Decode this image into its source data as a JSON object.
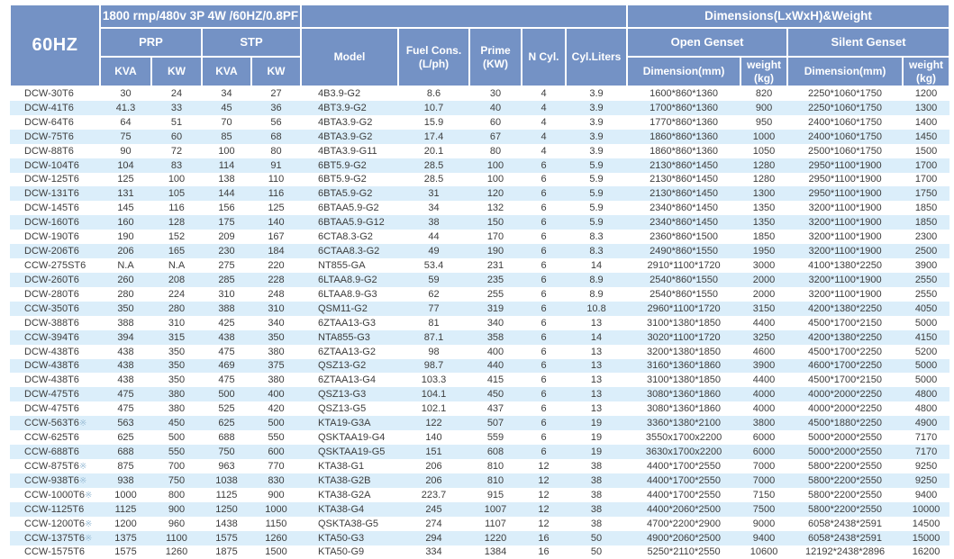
{
  "colors": {
    "header_bg": "#7492c5",
    "row_stripe": "#dbeefa",
    "body_text": "#3d3d3d",
    "header_text": "#ffffff",
    "special_mark": "#9fc0d8"
  },
  "header": {
    "freq": "60HZ",
    "spec_line": "1800 rmp/480v 3P 4W /60HZ/0.8PF",
    "prp": "PRP",
    "stp": "STP",
    "kva": "KVA",
    "kw": "KW",
    "model": "Model",
    "fuel": "Fuel Cons.\n(L/ph)",
    "prime": "Prime\n(KW)",
    "ncyl": "N Cyl.",
    "cyl_liters": "Cyl.Liters",
    "dims_group": "Dimensions(LxWxH)&Weight",
    "open_genset": "Open Genset",
    "silent_genset": "Silent Genset",
    "dimension_mm": "Dimension(mm)",
    "weight_kg": "weight\n(kg)"
  },
  "columns": [
    "genset",
    "prp_kva",
    "prp_kw",
    "stp_kva",
    "stp_kw",
    "model",
    "fuel",
    "prime",
    "ncyl",
    "cyl_liters",
    "open_dim",
    "open_weight",
    "silent_dim",
    "silent_weight"
  ],
  "rows": [
    [
      "DCW-30T6",
      "30",
      "24",
      "34",
      "27",
      "4B3.9-G2",
      "8.6",
      "30",
      "4",
      "3.9",
      "1600*860*1360",
      "820",
      "2250*1060*1750",
      "1200"
    ],
    [
      "DCW-41T6",
      "41.3",
      "33",
      "45",
      "36",
      "4BT3.9-G2",
      "10.7",
      "40",
      "4",
      "3.9",
      "1700*860*1360",
      "900",
      "2250*1060*1750",
      "1300"
    ],
    [
      "DCW-64T6",
      "64",
      "51",
      "70",
      "56",
      "4BTA3.9-G2",
      "15.9",
      "60",
      "4",
      "3.9",
      "1770*860*1360",
      "950",
      "2400*1060*1750",
      "1400"
    ],
    [
      "DCW-75T6",
      "75",
      "60",
      "85",
      "68",
      "4BTA3.9-G2",
      "17.4",
      "67",
      "4",
      "3.9",
      "1860*860*1360",
      "1000",
      "2400*1060*1750",
      "1450"
    ],
    [
      "DCW-88T6",
      "90",
      "72",
      "100",
      "80",
      "4BTA3.9-G11",
      "20.1",
      "80",
      "4",
      "3.9",
      "1860*860*1360",
      "1050",
      "2500*1060*1750",
      "1500"
    ],
    [
      "DCW-104T6",
      "104",
      "83",
      "114",
      "91",
      "6BT5.9-G2",
      "28.5",
      "100",
      "6",
      "5.9",
      "2130*860*1450",
      "1280",
      "2950*1100*1900",
      "1700"
    ],
    [
      "DCW-125T6",
      "125",
      "100",
      "138",
      "110",
      "6BT5.9-G2",
      "28.5",
      "100",
      "6",
      "5.9",
      "2130*860*1450",
      "1280",
      "2950*1100*1900",
      "1700"
    ],
    [
      "DCW-131T6",
      "131",
      "105",
      "144",
      "116",
      "6BTA5.9-G2",
      "31",
      "120",
      "6",
      "5.9",
      "2130*860*1450",
      "1300",
      "2950*1100*1900",
      "1750"
    ],
    [
      "DCW-145T6",
      "145",
      "116",
      "156",
      "125",
      "6BTAA5.9-G2",
      "34",
      "132",
      "6",
      "5.9",
      "2340*860*1450",
      "1350",
      "3200*1100*1900",
      "1850"
    ],
    [
      "DCW-160T6",
      "160",
      "128",
      "175",
      "140",
      "6BTAA5.9-G12",
      "38",
      "150",
      "6",
      "5.9",
      "2340*860*1450",
      "1350",
      "3200*1100*1900",
      "1850"
    ],
    [
      "DCW-190T6",
      "190",
      "152",
      "209",
      "167",
      "6CTA8.3-G2",
      "44",
      "170",
      "6",
      "8.3",
      "2360*860*1500",
      "1850",
      "3200*1100*1900",
      "2300"
    ],
    [
      "DCW-206T6",
      "206",
      "165",
      "230",
      "184",
      "6CTAA8.3-G2",
      "49",
      "190",
      "6",
      "8.3",
      "2490*860*1550",
      "1950",
      "3200*1100*1900",
      "2500"
    ],
    [
      "CCW-275ST6",
      "N.A",
      "N.A",
      "275",
      "220",
      "NT855-GA",
      "53.4",
      "231",
      "6",
      "14",
      "2910*1100*1720",
      "3000",
      "4100*1380*2250",
      "3900"
    ],
    [
      "DCW-260T6",
      "260",
      "208",
      "285",
      "228",
      "6LTAA8.9-G2",
      "59",
      "235",
      "6",
      "8.9",
      "2540*860*1550",
      "2000",
      "3200*1100*1900",
      "2550"
    ],
    [
      "DCW-280T6",
      "280",
      "224",
      "310",
      "248",
      "6LTAA8.9-G3",
      "62",
      "255",
      "6",
      "8.9",
      "2540*860*1550",
      "2000",
      "3200*1100*1900",
      "2550"
    ],
    [
      "CCW-350T6",
      "350",
      "280",
      "388",
      "310",
      "QSM11-G2",
      "77",
      "319",
      "6",
      "10.8",
      "2960*1100*1720",
      "3150",
      "4200*1380*2250",
      "4050"
    ],
    [
      "DCW-388T6",
      "388",
      "310",
      "425",
      "340",
      "6ZTAA13-G3",
      "81",
      "340",
      "6",
      "13",
      "3100*1380*1850",
      "4400",
      "4500*1700*2150",
      "5000"
    ],
    [
      "CCW-394T6",
      "394",
      "315",
      "438",
      "350",
      "NTA855-G3",
      "87.1",
      "358",
      "6",
      "14",
      "3020*1100*1720",
      "3250",
      "4200*1380*2250",
      "4150"
    ],
    [
      "DCW-438T6",
      "438",
      "350",
      "475",
      "380",
      "6ZTAA13-G2",
      "98",
      "400",
      "6",
      "13",
      "3200*1380*1850",
      "4600",
      "4500*1700*2250",
      "5200"
    ],
    [
      "DCW-438T6",
      "438",
      "350",
      "469",
      "375",
      "QSZ13-G2",
      "98.7",
      "440",
      "6",
      "13",
      "3160*1360*1860",
      "3900",
      "4600*1700*2250",
      "5000"
    ],
    [
      "DCW-438T6",
      "438",
      "350",
      "475",
      "380",
      "6ZTAA13-G4",
      "103.3",
      "415",
      "6",
      "13",
      "3100*1380*1850",
      "4400",
      "4500*1700*2150",
      "5000"
    ],
    [
      "DCW-475T6",
      "475",
      "380",
      "500",
      "400",
      "QSZ13-G3",
      "104.1",
      "450",
      "6",
      "13",
      "3080*1360*1860",
      "4000",
      "4000*2000*2250",
      "4800"
    ],
    [
      "DCW-475T6",
      "475",
      "380",
      "525",
      "420",
      "QSZ13-G5",
      "102.1",
      "437",
      "6",
      "13",
      "3080*1360*1860",
      "4000",
      "4000*2000*2250",
      "4800"
    ],
    [
      "CCW-563T6※",
      "563",
      "450",
      "625",
      "500",
      "KTA19-G3A",
      "122",
      "507",
      "6",
      "19",
      "3360*1380*2100",
      "3800",
      "4500*1880*2250",
      "4900"
    ],
    [
      "CCW-625T6",
      "625",
      "500",
      "688",
      "550",
      "QSKTAA19-G4",
      "140",
      "559",
      "6",
      "19",
      "3550x1700x2200",
      "6000",
      "5000*2000*2550",
      "7170"
    ],
    [
      "CCW-688T6",
      "688",
      "550",
      "750",
      "600",
      "QSKTAA19-G5",
      "151",
      "608",
      "6",
      "19",
      "3630x1700x2200",
      "6000",
      "5000*2000*2550",
      "7170"
    ],
    [
      "CCW-875T6※",
      "875",
      "700",
      "963",
      "770",
      "KTA38-G1",
      "206",
      "810",
      "12",
      "38",
      "4400*1700*2550",
      "7000",
      "5800*2200*2550",
      "9250"
    ],
    [
      "CCW-938T6※",
      "938",
      "750",
      "1038",
      "830",
      "KTA38-G2B",
      "206",
      "810",
      "12",
      "38",
      "4400*1700*2550",
      "7000",
      "5800*2200*2550",
      "9250"
    ],
    [
      "CCW-1000T6※",
      "1000",
      "800",
      "1125",
      "900",
      "KTA38-G2A",
      "223.7",
      "915",
      "12",
      "38",
      "4400*1700*2550",
      "7150",
      "5800*2200*2550",
      "9400"
    ],
    [
      "CCW-1125T6",
      "1125",
      "900",
      "1250",
      "1000",
      "KTA38-G4",
      "245",
      "1007",
      "12",
      "38",
      "4400*2060*2500",
      "7500",
      "5800*2200*2550",
      "10000"
    ],
    [
      "CCW-1200T6※",
      "1200",
      "960",
      "1438",
      "1150",
      "QSKTA38-G5",
      "274",
      "1107",
      "12",
      "38",
      "4700*2200*2900",
      "9000",
      "6058*2438*2591",
      "14500"
    ],
    [
      "CCW-1375T6※",
      "1375",
      "1100",
      "1575",
      "1260",
      "KTA50-G3",
      "294",
      "1220",
      "16",
      "50",
      "4900*2060*2500",
      "9400",
      "6058*2438*2591",
      "15000"
    ],
    [
      "CCW-1575T6",
      "1575",
      "1260",
      "1875",
      "1500",
      "KTA50-G9",
      "334",
      "1384",
      "16",
      "50",
      "5250*2110*2550",
      "10600",
      "12192*2438*2896",
      "16200"
    ]
  ]
}
